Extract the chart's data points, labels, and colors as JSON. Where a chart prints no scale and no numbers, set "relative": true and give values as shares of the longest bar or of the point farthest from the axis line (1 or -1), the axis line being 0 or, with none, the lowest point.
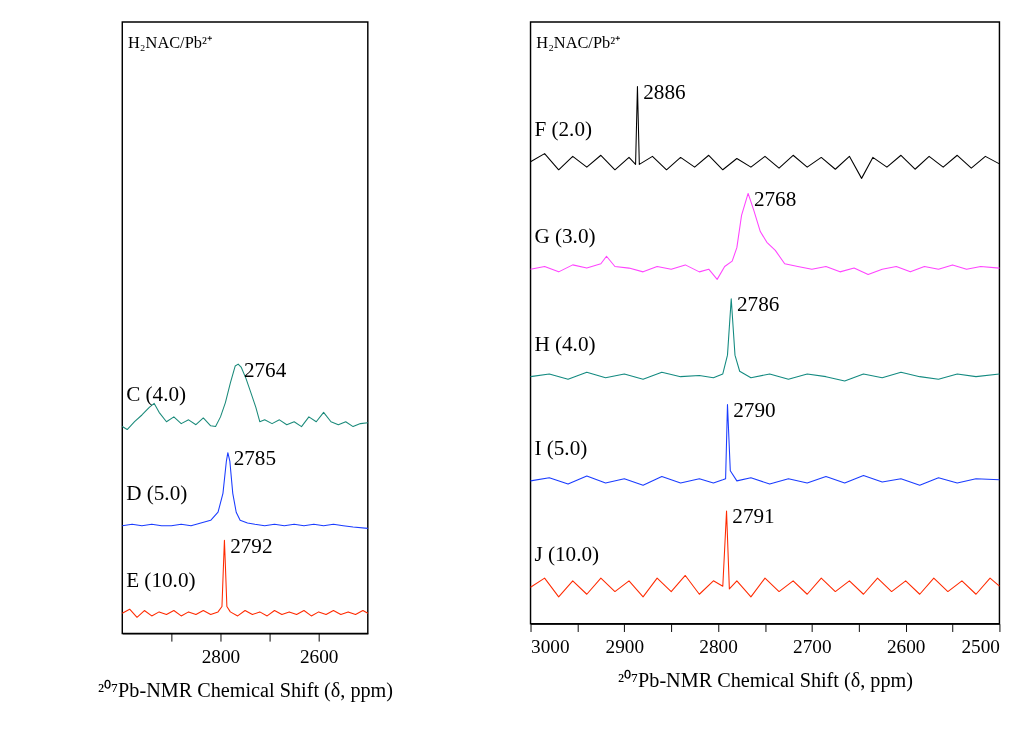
{
  "chart_data": [
    {
      "type": "line",
      "relative": true,
      "xlabel": "²⁰⁷Pb-NMR Chemical Shift (δ, ppm)",
      "xlim": [
        3000,
        2500
      ],
      "xticks": [
        {
          "value": 2900,
          "label": null
        },
        2800,
        {
          "value": 2700,
          "label": null
        },
        2600
      ],
      "tick_labels": "x",
      "legend": false,
      "grid": false,
      "annotations": [
        "H₂NAC/Pb²⁺",
        {
          "text": "2764",
          "x": 2764,
          "y": 1.0
        },
        {
          "text": "2785",
          "x": 2785,
          "y": 0.671
        },
        {
          "text": "2792",
          "x": 2792,
          "y": 0.346
        }
      ],
      "series": [
        {
          "name": "C (4.0)",
          "color": "#1a8a7a",
          "x": [
            3000,
            2990,
            2975,
            2960,
            2945,
            2935,
            2925,
            2910,
            2895,
            2880,
            2865,
            2850,
            2835,
            2820,
            2810,
            2800,
            2790,
            2780,
            2770,
            2764,
            2758,
            2748,
            2738,
            2728,
            2720,
            2710,
            2695,
            2680,
            2665,
            2650,
            2635,
            2620,
            2605,
            2590,
            2575,
            2560,
            2545,
            2530,
            2515,
            2500
          ],
          "values": [
            0.768,
            0.757,
            0.786,
            0.811,
            0.839,
            0.854,
            0.821,
            0.786,
            0.804,
            0.779,
            0.793,
            0.775,
            0.8,
            0.771,
            0.768,
            0.804,
            0.857,
            0.929,
            0.993,
            1.0,
            0.989,
            0.946,
            0.893,
            0.839,
            0.786,
            0.793,
            0.779,
            0.793,
            0.775,
            0.786,
            0.768,
            0.804,
            0.786,
            0.821,
            0.786,
            0.775,
            0.786,
            0.768,
            0.779,
            0.782
          ]
        },
        {
          "name": "D (5.0)",
          "color": "#1a3cff",
          "x": [
            3000,
            2980,
            2960,
            2940,
            2920,
            2900,
            2880,
            2860,
            2840,
            2820,
            2805,
            2795,
            2788,
            2785,
            2781,
            2775,
            2768,
            2760,
            2745,
            2730,
            2710,
            2690,
            2670,
            2650,
            2630,
            2610,
            2590,
            2570,
            2550,
            2530,
            2500
          ],
          "values": [
            0.4,
            0.405,
            0.4,
            0.405,
            0.4,
            0.4,
            0.405,
            0.4,
            0.41,
            0.42,
            0.45,
            0.52,
            0.64,
            0.671,
            0.64,
            0.52,
            0.45,
            0.42,
            0.41,
            0.405,
            0.4,
            0.405,
            0.4,
            0.405,
            0.4,
            0.405,
            0.4,
            0.405,
            0.4,
            0.395,
            0.39
          ]
        },
        {
          "name": "E (10.0)",
          "color": "#ff2a00",
          "x": [
            3000,
            2985,
            2970,
            2955,
            2940,
            2925,
            2910,
            2895,
            2880,
            2865,
            2850,
            2835,
            2820,
            2805,
            2797,
            2794,
            2792,
            2790,
            2787,
            2780,
            2765,
            2750,
            2735,
            2720,
            2705,
            2690,
            2675,
            2660,
            2645,
            2630,
            2615,
            2600,
            2585,
            2570,
            2555,
            2540,
            2525,
            2510,
            2500
          ],
          "values": [
            0.075,
            0.09,
            0.06,
            0.085,
            0.065,
            0.08,
            0.07,
            0.085,
            0.065,
            0.08,
            0.07,
            0.085,
            0.07,
            0.08,
            0.1,
            0.25,
            0.346,
            0.25,
            0.1,
            0.08,
            0.065,
            0.085,
            0.07,
            0.08,
            0.065,
            0.085,
            0.07,
            0.08,
            0.07,
            0.085,
            0.065,
            0.08,
            0.07,
            0.085,
            0.07,
            0.08,
            0.07,
            0.085,
            0.075
          ]
        }
      ]
    },
    {
      "type": "line",
      "relative": true,
      "xlabel": "²⁰⁷Pb-NMR Chemical Shift (δ, ppm)",
      "xlim": [
        3000,
        2500
      ],
      "xticks": [
        3000,
        {
          "value": 2950,
          "label": null
        },
        2900,
        {
          "value": 2850,
          "label": null
        },
        2800,
        {
          "value": 2750,
          "label": null
        },
        2700,
        {
          "value": 2650,
          "label": null
        },
        2600,
        {
          "value": 2550,
          "label": null
        },
        2500
      ],
      "tick_labels": "x",
      "legend": false,
      "grid": false,
      "annotations": [
        "H₂NAC/Pb²⁺",
        {
          "text": "2886",
          "x": 2886,
          "y": 1.0
        },
        {
          "text": "2768",
          "x": 2768,
          "y": 0.801
        },
        {
          "text": "2786",
          "x": 2786,
          "y": 0.605
        },
        {
          "text": "2790",
          "x": 2790,
          "y": 0.408
        },
        {
          "text": "2791",
          "x": 2791,
          "y": 0.21
        }
      ],
      "series": [
        {
          "name": "F (2.0)",
          "color": "#000000",
          "x": [
            3000,
            2985,
            2970,
            2955,
            2940,
            2925,
            2910,
            2895,
            2888,
            2886,
            2884,
            2870,
            2855,
            2840,
            2825,
            2810,
            2795,
            2780,
            2765,
            2750,
            2735,
            2720,
            2705,
            2690,
            2675,
            2660,
            2647,
            2635,
            2620,
            2605,
            2590,
            2575,
            2560,
            2545,
            2530,
            2515,
            2500
          ],
          "values": [
            0.86,
            0.875,
            0.845,
            0.87,
            0.85,
            0.872,
            0.845,
            0.868,
            0.855,
            1.0,
            0.855,
            0.87,
            0.845,
            0.868,
            0.85,
            0.872,
            0.845,
            0.866,
            0.85,
            0.87,
            0.848,
            0.872,
            0.85,
            0.868,
            0.846,
            0.87,
            0.829,
            0.868,
            0.85,
            0.872,
            0.846,
            0.87,
            0.85,
            0.872,
            0.848,
            0.87,
            0.856
          ]
        },
        {
          "name": "G (3.0)",
          "color": "#ff44ff",
          "x": [
            3000,
            2985,
            2970,
            2955,
            2940,
            2925,
            2919,
            2910,
            2895,
            2880,
            2865,
            2850,
            2835,
            2820,
            2810,
            2801,
            2793,
            2785,
            2780,
            2775,
            2768,
            2762,
            2755,
            2748,
            2739,
            2729,
            2715,
            2700,
            2685,
            2670,
            2655,
            2640,
            2625,
            2610,
            2595,
            2580,
            2565,
            2550,
            2535,
            2520,
            2500
          ],
          "values": [
            0.66,
            0.665,
            0.655,
            0.668,
            0.662,
            0.67,
            0.684,
            0.665,
            0.662,
            0.655,
            0.665,
            0.66,
            0.668,
            0.655,
            0.66,
            0.641,
            0.665,
            0.675,
            0.7,
            0.76,
            0.801,
            0.77,
            0.73,
            0.71,
            0.695,
            0.67,
            0.665,
            0.66,
            0.665,
            0.655,
            0.662,
            0.65,
            0.66,
            0.665,
            0.655,
            0.665,
            0.66,
            0.668,
            0.66,
            0.665,
            0.662
          ]
        },
        {
          "name": "H (4.0)",
          "color": "#138a80",
          "x": [
            3000,
            2980,
            2960,
            2940,
            2920,
            2900,
            2880,
            2860,
            2840,
            2820,
            2805,
            2795,
            2790,
            2786,
            2782,
            2777,
            2765,
            2745,
            2725,
            2705,
            2685,
            2665,
            2645,
            2625,
            2605,
            2585,
            2565,
            2545,
            2525,
            2500
          ],
          "values": [
            0.46,
            0.465,
            0.455,
            0.468,
            0.458,
            0.465,
            0.455,
            0.468,
            0.46,
            0.462,
            0.458,
            0.465,
            0.5,
            0.605,
            0.5,
            0.47,
            0.458,
            0.465,
            0.455,
            0.465,
            0.46,
            0.452,
            0.465,
            0.458,
            0.468,
            0.46,
            0.455,
            0.465,
            0.46,
            0.465
          ]
        },
        {
          "name": "I (5.0)",
          "color": "#1a3cff",
          "x": [
            3000,
            2980,
            2960,
            2940,
            2920,
            2900,
            2880,
            2860,
            2840,
            2820,
            2805,
            2795,
            2792,
            2790,
            2787,
            2780,
            2765,
            2745,
            2725,
            2705,
            2685,
            2665,
            2645,
            2625,
            2605,
            2585,
            2565,
            2545,
            2525,
            2500
          ],
          "values": [
            0.266,
            0.272,
            0.26,
            0.275,
            0.262,
            0.27,
            0.258,
            0.274,
            0.262,
            0.27,
            0.262,
            0.268,
            0.27,
            0.408,
            0.285,
            0.266,
            0.272,
            0.26,
            0.27,
            0.262,
            0.274,
            0.262,
            0.276,
            0.264,
            0.27,
            0.258,
            0.272,
            0.262,
            0.27,
            0.268
          ]
        },
        {
          "name": "J (10.0)",
          "color": "#ff2a00",
          "x": [
            3000,
            2985,
            2970,
            2955,
            2940,
            2925,
            2910,
            2895,
            2880,
            2865,
            2850,
            2835,
            2820,
            2805,
            2795,
            2791,
            2788,
            2780,
            2765,
            2750,
            2735,
            2720,
            2705,
            2690,
            2675,
            2660,
            2645,
            2630,
            2615,
            2600,
            2585,
            2570,
            2555,
            2540,
            2525,
            2510,
            2500
          ],
          "values": [
            0.068,
            0.085,
            0.05,
            0.08,
            0.055,
            0.085,
            0.06,
            0.08,
            0.05,
            0.085,
            0.06,
            0.09,
            0.055,
            0.08,
            0.07,
            0.21,
            0.065,
            0.08,
            0.05,
            0.085,
            0.06,
            0.08,
            0.055,
            0.085,
            0.06,
            0.08,
            0.055,
            0.085,
            0.06,
            0.08,
            0.055,
            0.085,
            0.06,
            0.08,
            0.055,
            0.085,
            0.07
          ]
        }
      ]
    }
  ]
}
